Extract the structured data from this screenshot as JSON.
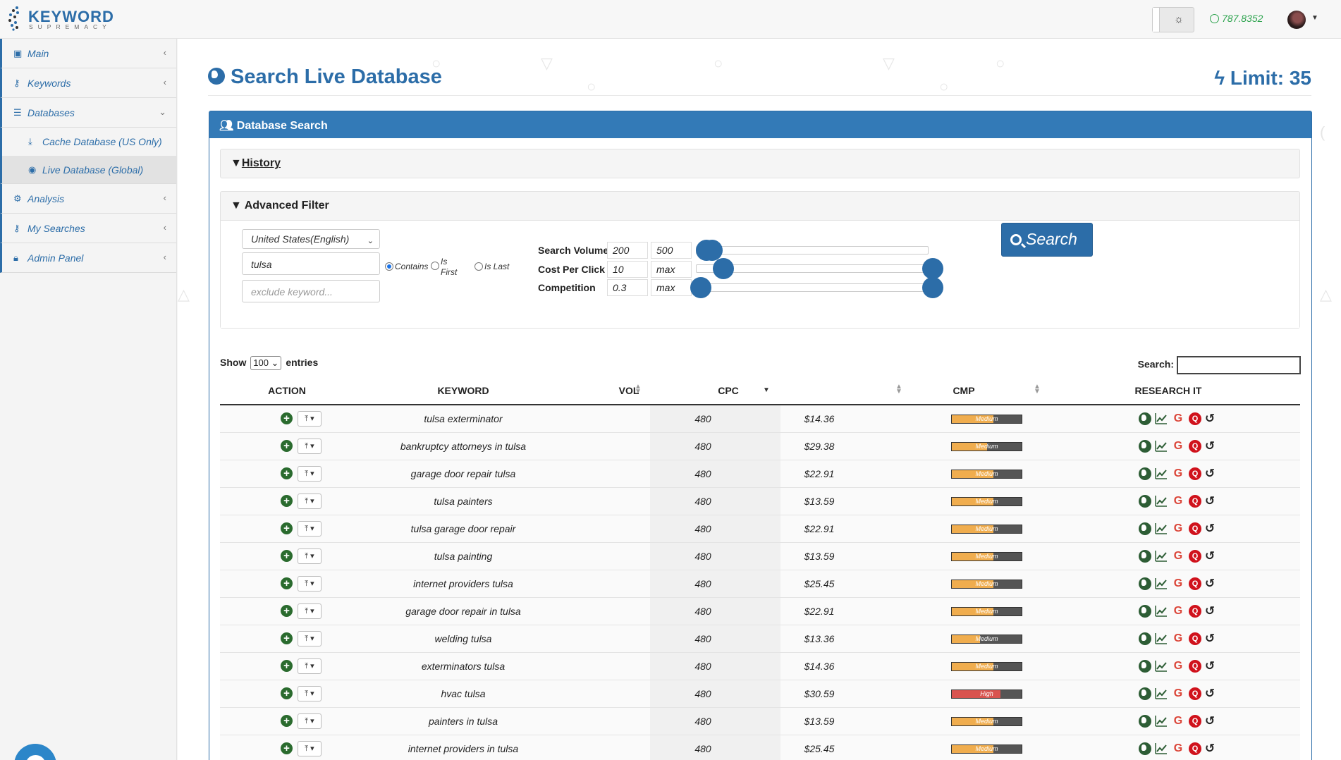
{
  "brand": {
    "word": "KEYWORD",
    "sub": "SUPREMACY"
  },
  "header": {
    "credits": "787.8352"
  },
  "sidebar": {
    "items": [
      {
        "label": "Main"
      },
      {
        "label": "Keywords"
      },
      {
        "label": "Databases"
      },
      {
        "label": "Analysis"
      },
      {
        "label": "My Searches"
      },
      {
        "label": "Admin Panel"
      }
    ],
    "sub_items": [
      {
        "label": "Cache Database (US Only)"
      },
      {
        "label": "Live Database (Global)"
      }
    ]
  },
  "page": {
    "title": "Search Live Database",
    "limit": "Limit: 35"
  },
  "panel": {
    "title": "Database Search",
    "history_label": "History",
    "advanced_label": "Advanced Filter"
  },
  "filter": {
    "country": "United States(English)",
    "keyword": "tulsa",
    "exclude_placeholder": "exclude keyword...",
    "match_modes": [
      "Contains",
      "Is First",
      "Is Last"
    ],
    "match_selected": "Contains",
    "search_volume_label": "Search Volume",
    "search_volume_min": "200",
    "search_volume_max": "500",
    "cpc_label": "Cost Per Click",
    "cpc_min": "10",
    "cpc_max": "max",
    "competition_label": "Competition",
    "competition_min": "0.3",
    "competition_max": "max",
    "search_button": "Search"
  },
  "table_controls": {
    "show_label": "Show",
    "entries_value": "100",
    "entries_label": "entries",
    "search_label": "Search:"
  },
  "columns": [
    "ACTION",
    "KEYWORD",
    "VOL",
    "CPC",
    "CMP",
    "RESEARCH IT"
  ],
  "colors": {
    "accent": "#2c6da8",
    "medium": "#f0ad4e",
    "high": "#d9534f"
  },
  "rows": [
    {
      "keyword": "tulsa exterminator",
      "vol": "480",
      "cpc": "$14.36",
      "cmp": "Medium",
      "cmp_level": 0.6
    },
    {
      "keyword": "bankruptcy attorneys in tulsa",
      "vol": "480",
      "cpc": "$29.38",
      "cmp": "Medium",
      "cmp_level": 0.5
    },
    {
      "keyword": "garage door repair tulsa",
      "vol": "480",
      "cpc": "$22.91",
      "cmp": "Medium",
      "cmp_level": 0.6
    },
    {
      "keyword": "tulsa painters",
      "vol": "480",
      "cpc": "$13.59",
      "cmp": "Medium",
      "cmp_level": 0.6
    },
    {
      "keyword": "tulsa garage door repair",
      "vol": "480",
      "cpc": "$22.91",
      "cmp": "Medium",
      "cmp_level": 0.6
    },
    {
      "keyword": "tulsa painting",
      "vol": "480",
      "cpc": "$13.59",
      "cmp": "Medium",
      "cmp_level": 0.6
    },
    {
      "keyword": "internet providers tulsa",
      "vol": "480",
      "cpc": "$25.45",
      "cmp": "Medium",
      "cmp_level": 0.6
    },
    {
      "keyword": "garage door repair in tulsa",
      "vol": "480",
      "cpc": "$22.91",
      "cmp": "Medium",
      "cmp_level": 0.6
    },
    {
      "keyword": "welding tulsa",
      "vol": "480",
      "cpc": "$13.36",
      "cmp": "Medium",
      "cmp_level": 0.4
    },
    {
      "keyword": "exterminators tulsa",
      "vol": "480",
      "cpc": "$14.36",
      "cmp": "Medium",
      "cmp_level": 0.6
    },
    {
      "keyword": "hvac tulsa",
      "vol": "480",
      "cpc": "$30.59",
      "cmp": "High",
      "cmp_level": 0.7
    },
    {
      "keyword": "painters in tulsa",
      "vol": "480",
      "cpc": "$13.59",
      "cmp": "Medium",
      "cmp_level": 0.6
    },
    {
      "keyword": "internet providers in tulsa",
      "vol": "480",
      "cpc": "$25.45",
      "cmp": "Medium",
      "cmp_level": 0.6
    }
  ]
}
